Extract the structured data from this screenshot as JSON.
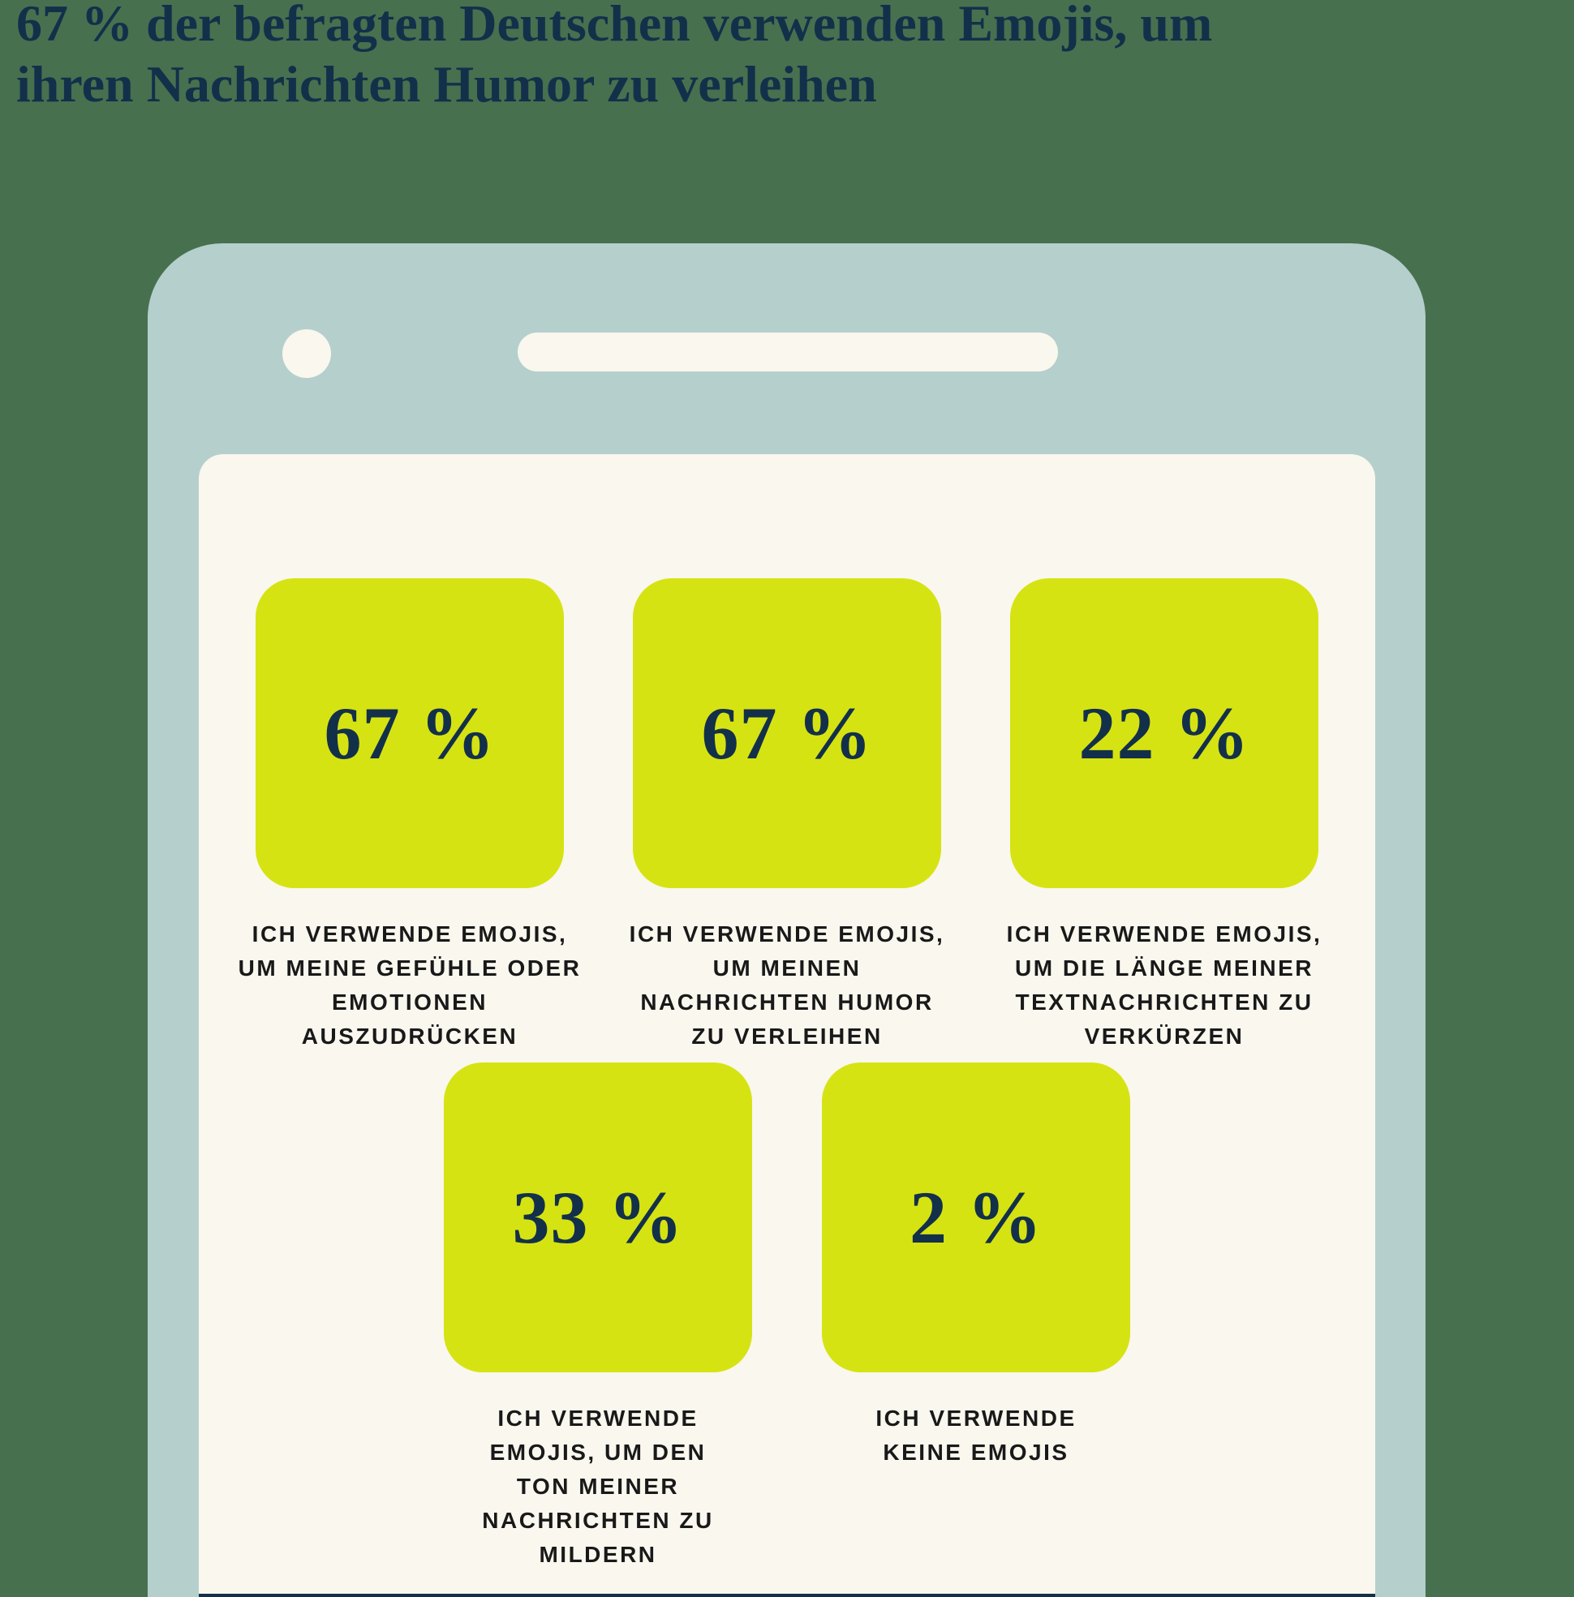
{
  "title": "67 % der befragten Deutschen verwenden Emojis, um\nihren Nachrichten Humor zu verleihen",
  "chart_data": {
    "type": "table",
    "title": "67 % der befragten Deutschen verwenden Emojis, um ihren Nachrichten Humor zu verleihen",
    "categories": [
      "ICH VERWENDE EMOJIS, UM MEINE GEFÜHLE ODER EMOTIONEN AUSZUDRÜCKEN",
      "ICH VERWENDE EMOJIS, UM MEINEN NACHRICHTEN HUMOR ZU VERLEIHEN",
      "ICH VERWENDE EMOJIS, UM DIE LÄNGE MEINER TEXTNACHRICHTEN ZU VERKÜRZEN",
      "ICH VERWENDE EMOJIS, UM DEN TON MEINER NACHRICHTEN ZU MILDERN",
      "ICH VERWENDE KEINE EMOJIS"
    ],
    "values": [
      67,
      67,
      22,
      33,
      2
    ],
    "unit": "%",
    "layout": "stat-tiles-in-phone-mockup, 3 tiles top row, 2 tiles bottom row"
  },
  "colors": {
    "background_green": "#47704F",
    "phone_body": "#B5CFCD",
    "screen_cream": "#F9F7EE",
    "tile_chartreuse": "#D6E312",
    "navy_text": "#13304A",
    "caption_text": "#191919"
  },
  "tiles": [
    {
      "value_label": "67 %",
      "caption": "ICH VERWENDE EMOJIS,\nUM MEINE GEFÜHLE ODER\nEMOTIONEN\nAUSZUDRÜCKEN"
    },
    {
      "value_label": "67 %",
      "caption": "ICH VERWENDE EMOJIS,\nUM MEINEN\nNACHRICHTEN HUMOR\nZU VERLEIHEN"
    },
    {
      "value_label": "22 %",
      "caption": "ICH VERWENDE EMOJIS,\nUM DIE LÄNGE MEINER\nTEXTNACHRICHTEN ZU\nVERKÜRZEN"
    },
    {
      "value_label": "33 %",
      "caption": "ICH VERWENDE\nEMOJIS, UM DEN\nTON MEINER\nNACHRICHTEN ZU\nMILDERN"
    },
    {
      "value_label": "2 %",
      "caption": "ICH VERWENDE\nKEINE EMOJIS"
    }
  ]
}
